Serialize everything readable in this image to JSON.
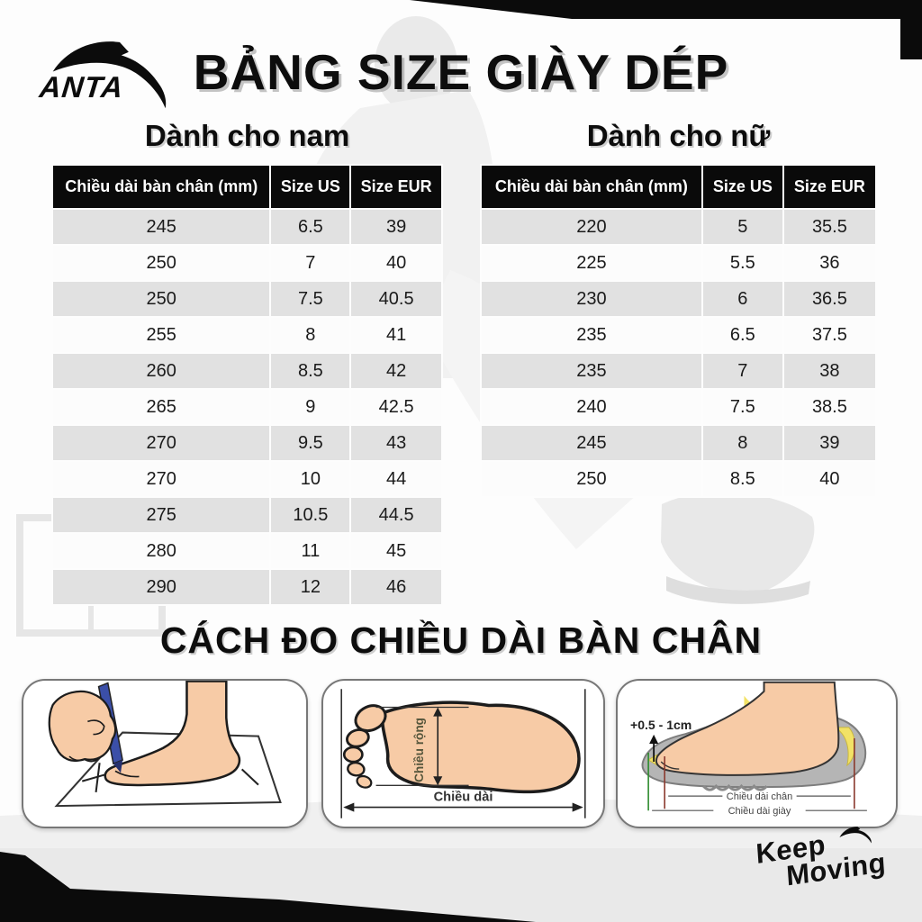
{
  "brand": {
    "name": "ANTA",
    "keep_moving_line1": "Keep",
    "keep_moving_line2": "Moving"
  },
  "title": "BẢNG SIZE GIÀY DÉP",
  "tables": {
    "men": {
      "title": "Dành cho nam",
      "headers": [
        "Chiều dài bàn chân (mm)",
        "Size US",
        "Size EUR"
      ],
      "rows": [
        [
          "245",
          "6.5",
          "39"
        ],
        [
          "250",
          "7",
          "40"
        ],
        [
          "250",
          "7.5",
          "40.5"
        ],
        [
          "255",
          "8",
          "41"
        ],
        [
          "260",
          "8.5",
          "42"
        ],
        [
          "265",
          "9",
          "42.5"
        ],
        [
          "270",
          "9.5",
          "43"
        ],
        [
          "270",
          "10",
          "44"
        ],
        [
          "275",
          "10.5",
          "44.5"
        ],
        [
          "280",
          "11",
          "45"
        ],
        [
          "290",
          "12",
          "46"
        ]
      ]
    },
    "women": {
      "title": "Dành cho nữ",
      "headers": [
        "Chiều dài bàn chân (mm)",
        "Size US",
        "Size EUR"
      ],
      "rows": [
        [
          "220",
          "5",
          "35.5"
        ],
        [
          "225",
          "5.5",
          "36"
        ],
        [
          "230",
          "6",
          "36.5"
        ],
        [
          "235",
          "6.5",
          "37.5"
        ],
        [
          "235",
          "7",
          "38"
        ],
        [
          "240",
          "7.5",
          "38.5"
        ],
        [
          "245",
          "8",
          "39"
        ],
        [
          "250",
          "8.5",
          "40"
        ]
      ]
    }
  },
  "measure": {
    "title": "CÁCH ĐO CHIỀU DÀI BÀN CHÂN",
    "foot_width_label": "Chiều rộng",
    "foot_length_label": "Chiều dài",
    "allowance_label": "+0.5 - 1cm",
    "foot_length_line_label": "Chiều dài chân",
    "shoe_length_line_label": "Chiều dài giày"
  },
  "colors": {
    "header_black": "#0a0a0a",
    "row_alt_gray": "#e1e1e1",
    "skin": "#f7cba6",
    "pen_blue": "#3b4fa8",
    "insole_yellow": "#f2e266",
    "shoe_gray": "#b5b5b5",
    "toe_line_green": "#2e8b2e",
    "heel_line_red": "#8b3a2e"
  }
}
